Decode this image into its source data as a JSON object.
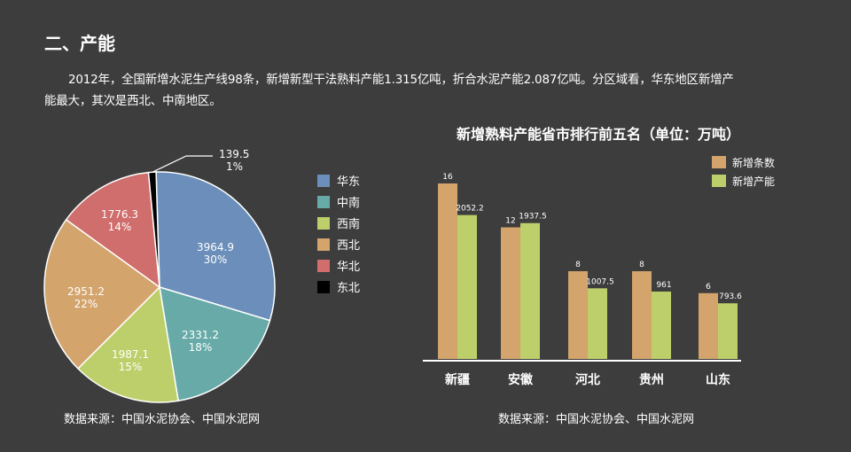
{
  "heading": "二、产能",
  "intro": "2012年，全国新增水泥生产线98条，新增新型干法熟料产能1.315亿吨，折合水泥产能2.087亿吨。分区域看，华东地区新增产能最大，其次是西北、中南地区。",
  "source_left": "数据来源：中国水泥协会、中国水泥网",
  "source_right": "数据来源：中国水泥协会、中国水泥网",
  "chart_data": [
    {
      "type": "pie",
      "title": "",
      "slices": [
        {
          "label": "华东",
          "value": 3964.9,
          "percent": "30%",
          "color": "#6b8fba"
        },
        {
          "label": "中南",
          "value": 2331.2,
          "percent": "18%",
          "color": "#67aaa8"
        },
        {
          "label": "西南",
          "value": 1987.1,
          "percent": "15%",
          "color": "#bccf6a"
        },
        {
          "label": "西北",
          "value": 2951.2,
          "percent": "22%",
          "color": "#d3a46c"
        },
        {
          "label": "华北",
          "value": 1776.3,
          "percent": "14%",
          "color": "#cf6e6c"
        },
        {
          "label": "东北",
          "value": 139.5,
          "percent": "1%",
          "color": "#000000"
        }
      ],
      "legend": "right"
    },
    {
      "type": "bar",
      "title": "新增熟料产能省市排行前五名（单位：万吨）",
      "categories": [
        "新疆",
        "安徽",
        "河北",
        "贵州",
        "山东"
      ],
      "series": [
        {
          "name": "新增条数",
          "values": [
            16,
            12,
            8,
            8,
            6
          ],
          "color": "#d3a46c"
        },
        {
          "name": "新增产能",
          "values": [
            2052.2,
            1937.5,
            1007.5,
            961,
            793.6
          ],
          "color": "#bccf6a"
        }
      ],
      "legend": "top-right"
    }
  ]
}
